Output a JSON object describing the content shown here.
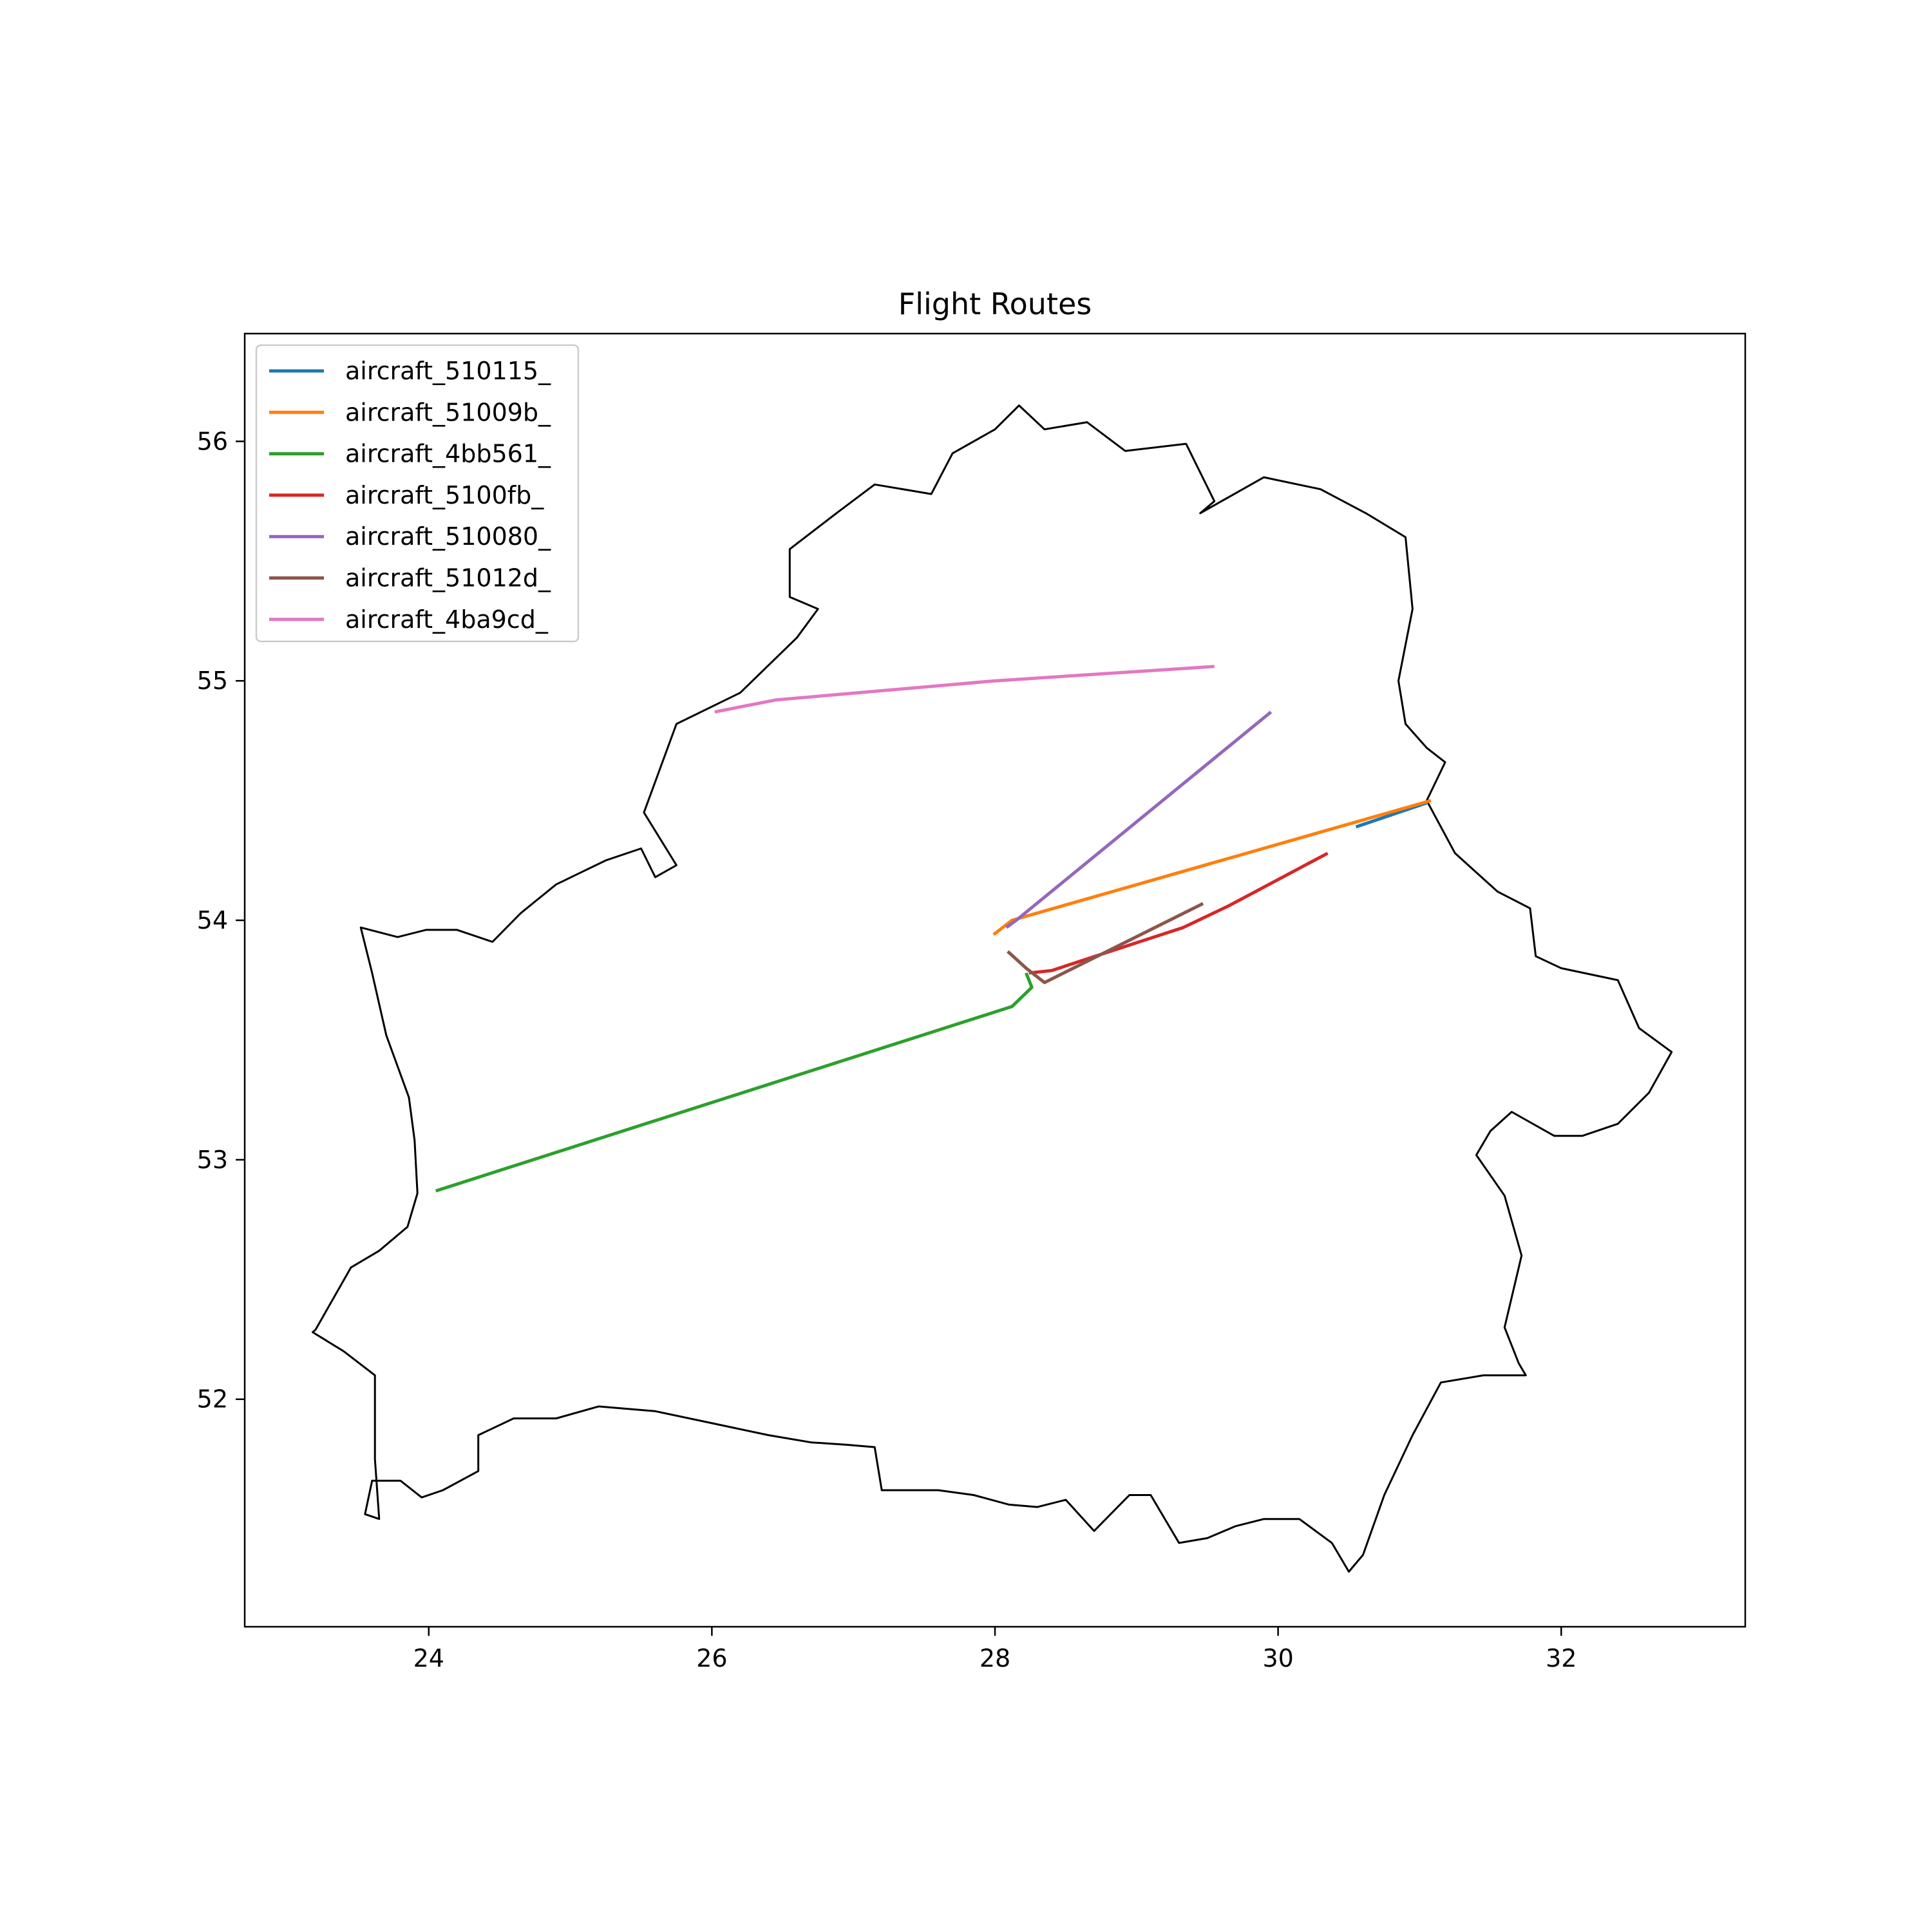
{
  "chart_data": {
    "type": "line",
    "title": "Flight Routes",
    "xlabel": "",
    "ylabel": "",
    "xlim": [
      22.7,
      33.3
    ],
    "ylim": [
      51.05,
      56.45
    ],
    "x_ticks": [
      24,
      26,
      28,
      30,
      32
    ],
    "y_ticks": [
      52,
      53,
      54,
      55,
      56
    ],
    "grid": false,
    "legend_position": "top-left",
    "series": [
      {
        "name": "aircraft_510115_",
        "color": "#1f77b4",
        "points": [
          [
            30.55,
            54.39
          ],
          [
            31.05,
            54.49
          ]
        ]
      },
      {
        "name": "aircraft_51009b_",
        "color": "#ff7f0e",
        "points": [
          [
            27.99,
            53.94
          ],
          [
            28.12,
            54.0
          ],
          [
            31.08,
            54.5
          ]
        ]
      },
      {
        "name": "aircraft_4bb561_",
        "color": "#2ca02c",
        "points": [
          [
            24.05,
            52.87
          ],
          [
            28.12,
            53.64
          ],
          [
            28.26,
            53.72
          ],
          [
            28.22,
            53.78
          ]
        ]
      },
      {
        "name": "aircraft_5100fb_",
        "color": "#d62728",
        "points": [
          [
            28.24,
            53.78
          ],
          [
            28.4,
            53.79
          ],
          [
            29.33,
            53.97
          ],
          [
            29.65,
            54.06
          ],
          [
            30.35,
            54.28
          ]
        ]
      },
      {
        "name": "aircraft_510080_",
        "color": "#9467bd",
        "points": [
          [
            28.08,
            53.97
          ],
          [
            28.15,
            54.0
          ],
          [
            29.95,
            54.87
          ]
        ]
      },
      {
        "name": "aircraft_51012d_",
        "color": "#8c564b",
        "points": [
          [
            28.09,
            53.87
          ],
          [
            28.22,
            53.8
          ],
          [
            28.35,
            53.74
          ],
          [
            29.47,
            54.07
          ]
        ]
      },
      {
        "name": "aircraft_4ba9cd_",
        "color": "#e377c2",
        "points": [
          [
            26.02,
            54.87
          ],
          [
            26.45,
            54.92
          ],
          [
            28.0,
            55.0
          ],
          [
            29.55,
            55.06
          ]
        ]
      }
    ],
    "boundary_color": "#000000",
    "boundary": [
      [
        23.2,
        52.29
      ],
      [
        23.45,
        52.55
      ],
      [
        23.65,
        52.62
      ],
      [
        23.85,
        52.72
      ],
      [
        23.92,
        52.86
      ],
      [
        23.9,
        53.08
      ],
      [
        23.86,
        53.26
      ],
      [
        23.7,
        53.52
      ],
      [
        23.6,
        53.78
      ],
      [
        23.52,
        53.97
      ],
      [
        23.78,
        53.93
      ],
      [
        23.98,
        53.96
      ],
      [
        24.2,
        53.96
      ],
      [
        24.45,
        53.91
      ],
      [
        24.65,
        54.03
      ],
      [
        24.9,
        54.15
      ],
      [
        25.25,
        54.25
      ],
      [
        25.5,
        54.3
      ],
      [
        25.6,
        54.18
      ],
      [
        25.75,
        54.23
      ],
      [
        25.52,
        54.45
      ],
      [
        25.75,
        54.82
      ],
      [
        26.2,
        54.95
      ],
      [
        26.6,
        55.18
      ],
      [
        26.75,
        55.3
      ],
      [
        26.55,
        55.35
      ],
      [
        26.55,
        55.55
      ],
      [
        26.88,
        55.7
      ],
      [
        27.15,
        55.82
      ],
      [
        27.55,
        55.78
      ],
      [
        27.7,
        55.95
      ],
      [
        28.0,
        56.05
      ],
      [
        28.17,
        56.15
      ],
      [
        28.35,
        56.05
      ],
      [
        28.65,
        56.08
      ],
      [
        28.92,
        55.96
      ],
      [
        29.35,
        55.99
      ],
      [
        29.55,
        55.75
      ],
      [
        29.45,
        55.7
      ],
      [
        29.9,
        55.85
      ],
      [
        30.3,
        55.8
      ],
      [
        30.62,
        55.7
      ],
      [
        30.9,
        55.6
      ],
      [
        30.95,
        55.3
      ],
      [
        30.85,
        55.0
      ],
      [
        30.9,
        54.82
      ],
      [
        31.05,
        54.72
      ],
      [
        31.18,
        54.66
      ],
      [
        31.05,
        54.5
      ],
      [
        31.25,
        54.28
      ],
      [
        31.55,
        54.12
      ],
      [
        31.78,
        54.05
      ],
      [
        31.82,
        53.85
      ],
      [
        32.0,
        53.8
      ],
      [
        32.4,
        53.75
      ],
      [
        32.55,
        53.55
      ],
      [
        32.78,
        53.45
      ],
      [
        32.62,
        53.28
      ],
      [
        32.4,
        53.15
      ],
      [
        32.15,
        53.1
      ],
      [
        31.95,
        53.1
      ],
      [
        31.65,
        53.2
      ],
      [
        31.5,
        53.12
      ],
      [
        31.4,
        53.02
      ],
      [
        31.6,
        52.85
      ],
      [
        31.72,
        52.6
      ],
      [
        31.6,
        52.3
      ],
      [
        31.7,
        52.15
      ],
      [
        31.75,
        52.1
      ],
      [
        31.45,
        52.1
      ],
      [
        31.15,
        52.07
      ],
      [
        30.95,
        51.85
      ],
      [
        30.75,
        51.6
      ],
      [
        30.6,
        51.35
      ],
      [
        30.5,
        51.28
      ],
      [
        30.38,
        51.4
      ],
      [
        30.15,
        51.5
      ],
      [
        29.9,
        51.5
      ],
      [
        29.7,
        51.47
      ],
      [
        29.5,
        51.42
      ],
      [
        29.3,
        51.4
      ],
      [
        29.1,
        51.6
      ],
      [
        28.95,
        51.6
      ],
      [
        28.7,
        51.45
      ],
      [
        28.5,
        51.58
      ],
      [
        28.3,
        51.55
      ],
      [
        28.1,
        51.56
      ],
      [
        27.85,
        51.6
      ],
      [
        27.6,
        51.62
      ],
      [
        27.2,
        51.62
      ],
      [
        27.15,
        51.8
      ],
      [
        26.95,
        51.81
      ],
      [
        26.7,
        51.82
      ],
      [
        26.4,
        51.85
      ],
      [
        26.0,
        51.9
      ],
      [
        25.6,
        51.95
      ],
      [
        25.2,
        51.97
      ],
      [
        24.9,
        51.92
      ],
      [
        24.6,
        51.92
      ],
      [
        24.35,
        51.85
      ],
      [
        24.35,
        51.7
      ],
      [
        24.1,
        51.62
      ],
      [
        23.95,
        51.59
      ],
      [
        23.8,
        51.66
      ],
      [
        23.6,
        51.66
      ],
      [
        23.55,
        51.52
      ],
      [
        23.65,
        51.5
      ],
      [
        23.62,
        51.75
      ],
      [
        23.62,
        52.1
      ],
      [
        23.4,
        52.2
      ],
      [
        23.18,
        52.28
      ],
      [
        23.2,
        52.29
      ]
    ]
  }
}
